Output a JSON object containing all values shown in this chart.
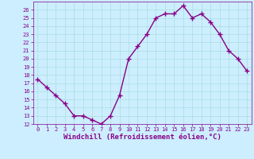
{
  "x": [
    0,
    1,
    2,
    3,
    4,
    5,
    6,
    7,
    8,
    9,
    10,
    11,
    12,
    13,
    14,
    15,
    16,
    17,
    18,
    19,
    20,
    21,
    22,
    23
  ],
  "y": [
    17.5,
    16.5,
    15.5,
    14.5,
    13,
    13,
    12.5,
    12,
    13,
    15.5,
    20,
    21.5,
    23,
    25,
    25.5,
    25.5,
    26.5,
    25,
    25.5,
    24.5,
    23,
    21,
    20,
    18.5
  ],
  "line_color": "#880088",
  "marker": "+",
  "marker_size": 4,
  "bg_color": "#cceeff",
  "grid_color": "#aadddd",
  "xlabel": "Windchill (Refroidissement éolien,°C)",
  "xlabel_color": "#880088",
  "ylim": [
    12,
    27
  ],
  "yticks": [
    12,
    13,
    14,
    15,
    16,
    17,
    18,
    19,
    20,
    21,
    22,
    23,
    24,
    25,
    26
  ],
  "xticks": [
    0,
    1,
    2,
    3,
    4,
    5,
    6,
    7,
    8,
    9,
    10,
    11,
    12,
    13,
    14,
    15,
    16,
    17,
    18,
    19,
    20,
    21,
    22,
    23
  ],
  "tick_color": "#880088",
  "tick_labelsize": 5,
  "xlabel_fontsize": 6.5,
  "line_width": 1.0
}
